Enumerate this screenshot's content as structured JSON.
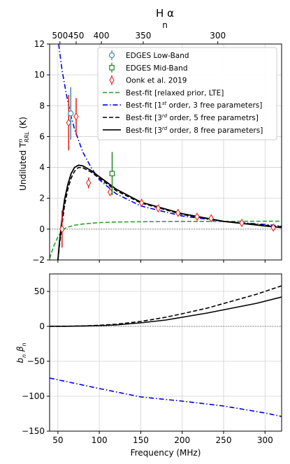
{
  "top_axis": {
    "label": "H α",
    "sublabel": "n",
    "ticks": [
      {
        "n": 500,
        "label": "500",
        "freq": 52.5
      },
      {
        "n": 450,
        "label": "450",
        "freq": 72.0
      },
      {
        "n": 400,
        "label": "400",
        "freq": 102.5
      },
      {
        "n": 350,
        "label": "350",
        "freq": 153.0
      },
      {
        "n": 300,
        "label": "300",
        "freq": 243.0
      }
    ]
  },
  "chart_data": [
    {
      "type": "line",
      "panel": "top",
      "ylabel": "Undiluted T^{n}_{RRL} (K)",
      "xlim": [
        40,
        320
      ],
      "ylim": [
        -2,
        12
      ],
      "xticks": [
        50,
        100,
        150,
        200,
        250,
        300
      ],
      "yticks": [
        -2,
        0,
        2,
        4,
        6,
        8,
        10,
        12
      ],
      "grid": true,
      "legend_position": "upper-right",
      "legend": [
        {
          "label": "EDGES Low-Band",
          "marker": "circle",
          "color": "#4a90b8"
        },
        {
          "label": "EDGES Mid-Band",
          "marker": "square",
          "color": "#2e8b2e"
        },
        {
          "label": "Oonk et al. 2019",
          "marker": "diamond",
          "color": "#e8241a"
        },
        {
          "label": "Best-fit [relaxed prior, LTE]",
          "style": "dashed",
          "color": "#2ca02c"
        },
        {
          "label": "Best-fit [1st order, 3 free parameters]",
          "style": "dashdot",
          "color": "#0000dd"
        },
        {
          "label": "Best-fit [3rd order, 5 free parametrs]",
          "style": "dashed",
          "color": "#000000"
        },
        {
          "label": "Best-fit [3rd order, 8 free parameters]",
          "style": "solid",
          "color": "#000000"
        }
      ],
      "points": {
        "edges_low": [
          {
            "x": 65.5,
            "y": 7.5,
            "err": 1.7
          }
        ],
        "edges_mid": [
          {
            "x": 115.5,
            "y": 3.6,
            "err": 1.4
          }
        ],
        "oonk": [
          {
            "x": 55,
            "y": 0.0,
            "err": 1.2
          },
          {
            "x": 63,
            "y": 6.9,
            "err": 1.8
          },
          {
            "x": 72,
            "y": 7.3,
            "err": 1.2
          },
          {
            "x": 87,
            "y": 3.0,
            "err": 0.35
          },
          {
            "x": 113,
            "y": 2.4,
            "err": 0.2
          },
          {
            "x": 151,
            "y": 1.7,
            "err": 0.15
          },
          {
            "x": 171,
            "y": 1.35,
            "err": 0.15
          },
          {
            "x": 195,
            "y": 1.05,
            "err": 0.12
          },
          {
            "x": 218,
            "y": 0.8,
            "err": 0.12
          },
          {
            "x": 235,
            "y": 0.7,
            "err": 0.12
          },
          {
            "x": 272,
            "y": 0.4,
            "err": 0.15
          },
          {
            "x": 310,
            "y": 0.1,
            "err": 0.2
          }
        ]
      },
      "series": [
        {
          "name": "Best-fit [relaxed prior, LTE]",
          "style": "dashed",
          "color": "#2ca02c",
          "x": [
            40,
            45,
            50,
            55,
            60,
            70,
            80,
            90,
            100,
            120,
            150,
            200,
            250,
            300,
            320
          ],
          "y": [
            -1.9,
            -1.1,
            -0.5,
            -0.1,
            0.1,
            0.25,
            0.33,
            0.38,
            0.42,
            0.46,
            0.48,
            0.5,
            0.5,
            0.51,
            0.51
          ]
        },
        {
          "name": "Best-fit [1st order, 3 free parameters]",
          "style": "dashdot",
          "color": "#0000dd",
          "x": [
            51,
            55,
            60,
            65,
            70,
            80,
            90,
            100,
            120,
            150,
            200,
            250,
            300,
            320
          ],
          "y": [
            12,
            10.3,
            8.8,
            7.5,
            6.5,
            5.0,
            4.0,
            3.2,
            2.3,
            1.5,
            0.85,
            0.5,
            0.3,
            0.2
          ]
        },
        {
          "name": "Best-fit [3rd order, 5 free parametrs]",
          "style": "dashed",
          "color": "#000000",
          "x": [
            50,
            52,
            55,
            58,
            62,
            66,
            70,
            75,
            80,
            90,
            100,
            120,
            150,
            200,
            250,
            300,
            320
          ],
          "y": [
            -2,
            -1.0,
            0.3,
            1.5,
            2.6,
            3.3,
            3.75,
            4.0,
            3.98,
            3.7,
            3.3,
            2.5,
            1.7,
            0.95,
            0.5,
            0.25,
            0.15
          ]
        },
        {
          "name": "Best-fit [3rd order, 8 free parameters]",
          "style": "solid",
          "color": "#000000",
          "x": [
            50,
            52,
            55,
            58,
            62,
            66,
            70,
            75,
            80,
            90,
            100,
            120,
            150,
            200,
            250,
            300,
            320
          ],
          "y": [
            -2,
            -0.8,
            0.7,
            1.9,
            2.9,
            3.6,
            4.0,
            4.15,
            4.1,
            3.8,
            3.4,
            2.6,
            1.75,
            1.0,
            0.5,
            0.2,
            0.1
          ]
        }
      ],
      "reference_line": {
        "y": 0,
        "style": "dotted",
        "color": "#777777"
      }
    },
    {
      "type": "line",
      "panel": "bottom",
      "xlabel": "Frequency (MHz)",
      "ylabel": "b_n β_n",
      "xlim": [
        40,
        320
      ],
      "ylim": [
        -150,
        75
      ],
      "xticks": [
        50,
        100,
        150,
        200,
        250,
        300
      ],
      "yticks": [
        -150,
        -100,
        -50,
        0,
        50
      ],
      "grid": true,
      "series": [
        {
          "style": "dashdot",
          "color": "#0000dd",
          "x": [
            40,
            100,
            150,
            200,
            250,
            300,
            320
          ],
          "y": [
            -74,
            -89,
            -101,
            -107,
            -114,
            -124,
            -129
          ]
        },
        {
          "style": "dashed",
          "color": "#000000",
          "x": [
            40,
            60,
            80,
            100,
            120,
            150,
            180,
            200,
            230,
            260,
            290,
            320
          ],
          "y": [
            0,
            0.2,
            0.6,
            1.5,
            3,
            7,
            13,
            18,
            26,
            36,
            46,
            58
          ]
        },
        {
          "style": "solid",
          "color": "#000000",
          "x": [
            40,
            60,
            80,
            100,
            120,
            150,
            180,
            200,
            230,
            260,
            290,
            320
          ],
          "y": [
            0,
            0.1,
            0.4,
            1,
            2,
            5,
            9,
            13,
            19,
            26,
            33,
            42
          ]
        }
      ],
      "reference_line": {
        "y": 0,
        "style": "dotted",
        "color": "#777777"
      }
    }
  ]
}
